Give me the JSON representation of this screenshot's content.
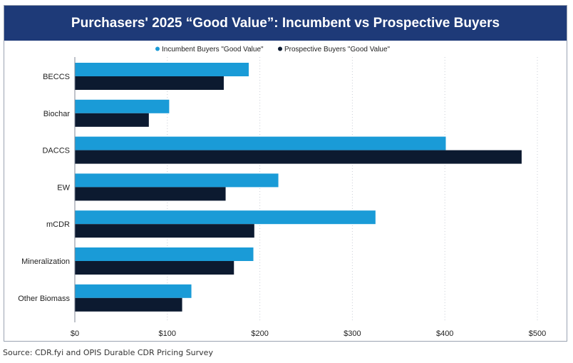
{
  "chart_data": {
    "type": "bar",
    "orientation": "horizontal",
    "title": "Purchasers' 2025 “Good Value”: Incumbent vs Prospective Buyers",
    "categories": [
      "BECCS",
      "Biochar",
      "DACCS",
      "EW",
      "mCDR",
      "Mineralization",
      "Other Biomass"
    ],
    "series": [
      {
        "name": "Incumbent Buyers \"Good Value\"",
        "color": "#1a9bd7",
        "values": [
          188,
          102,
          401,
          220,
          325,
          193,
          126
        ]
      },
      {
        "name": "Prospective Buyers \"Good Value\"",
        "color": "#0c1a30",
        "values": [
          161,
          80,
          483,
          163,
          194,
          172,
          116
        ]
      }
    ],
    "x_ticks": [
      "$0",
      "$100",
      "$200",
      "$300",
      "$400",
      "$500"
    ],
    "xlim": [
      0,
      500
    ],
    "xlabel": "",
    "ylabel": "",
    "grid": "vertical dotted",
    "legend_position": "top"
  },
  "source": "Source: CDR.fyi and OPIS Durable CDR Pricing Survey",
  "colors": {
    "title_bar": "#1e3a78",
    "frame": "#9aa3b2"
  }
}
